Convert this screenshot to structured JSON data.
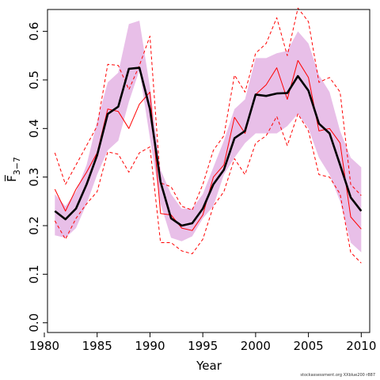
{
  "chart_data": {
    "type": "line",
    "xlabel": "Year",
    "ylabel": "F̅",
    "ylabel_sub": "3−7",
    "xlim": [
      1980.3,
      2010.8
    ],
    "ylim": [
      -0.02,
      0.645
    ],
    "x_ticks": [
      1980,
      1985,
      1990,
      1995,
      2000,
      2005,
      2010
    ],
    "y_ticks": [
      0.0,
      0.1,
      0.2,
      0.3,
      0.4,
      0.5,
      0.6
    ],
    "x_tick_labels": [
      "1980",
      "1985",
      "1990",
      "1995",
      "2000",
      "2005",
      "2010"
    ],
    "y_tick_labels": [
      "0.0",
      "0.1",
      "0.2",
      "0.3",
      "0.4",
      "0.5",
      "0.6"
    ],
    "grid": false,
    "colors": {
      "band": "#e8bfe8",
      "main": "#000000",
      "red": "#ff0000"
    },
    "x": [
      1981,
      1982,
      1983,
      1984,
      1985,
      1986,
      1987,
      1988,
      1989,
      1990,
      1991,
      1992,
      1993,
      1994,
      1995,
      1996,
      1997,
      1998,
      1999,
      2000,
      2001,
      2002,
      2003,
      2004,
      2005,
      2006,
      2007,
      2008,
      2009,
      2010
    ],
    "band_lower": [
      0.18,
      0.175,
      0.195,
      0.245,
      0.305,
      0.355,
      0.375,
      0.455,
      0.52,
      0.38,
      0.245,
      0.175,
      0.168,
      0.178,
      0.215,
      0.24,
      0.305,
      0.34,
      0.37,
      0.39,
      0.39,
      0.39,
      0.405,
      0.43,
      0.4,
      0.34,
      0.305,
      0.25,
      0.165,
      0.145
    ],
    "band_upper": [
      0.265,
      0.24,
      0.27,
      0.325,
      0.415,
      0.495,
      0.515,
      0.615,
      0.622,
      0.485,
      0.315,
      0.265,
      0.235,
      0.235,
      0.265,
      0.32,
      0.375,
      0.44,
      0.46,
      0.545,
      0.545,
      0.555,
      0.56,
      0.6,
      0.575,
      0.51,
      0.475,
      0.395,
      0.34,
      0.32
    ],
    "series": [
      {
        "style": "thick-solid",
        "color": "main",
        "values": [
          0.23,
          0.213,
          0.235,
          0.285,
          0.345,
          0.43,
          0.445,
          0.523,
          0.525,
          0.44,
          0.29,
          0.215,
          0.2,
          0.205,
          0.235,
          0.285,
          0.315,
          0.38,
          0.395,
          0.47,
          0.467,
          0.472,
          0.473,
          0.508,
          0.478,
          0.41,
          0.39,
          0.325,
          0.258,
          0.23
        ]
      },
      {
        "style": "thin-solid",
        "color": "red",
        "values": [
          0.275,
          0.23,
          0.275,
          0.31,
          0.35,
          0.44,
          0.435,
          0.4,
          0.45,
          0.475,
          0.225,
          0.222,
          0.195,
          0.19,
          0.222,
          0.3,
          0.325,
          0.423,
          0.39,
          0.47,
          0.49,
          0.525,
          0.46,
          0.54,
          0.505,
          0.395,
          0.4,
          0.37,
          0.218,
          0.193
        ]
      },
      {
        "style": "dashed",
        "color": "red",
        "values": [
          0.35,
          0.285,
          0.325,
          0.365,
          0.405,
          0.532,
          0.53,
          0.48,
          0.53,
          0.59,
          0.288,
          0.28,
          0.24,
          0.232,
          0.285,
          0.355,
          0.385,
          0.51,
          0.475,
          0.555,
          0.575,
          0.628,
          0.55,
          0.648,
          0.62,
          0.495,
          0.505,
          0.475,
          0.285,
          0.262
        ]
      },
      {
        "style": "dashed",
        "color": "red",
        "values": [
          0.21,
          0.172,
          0.215,
          0.245,
          0.27,
          0.352,
          0.347,
          0.31,
          0.35,
          0.362,
          0.165,
          0.165,
          0.148,
          0.142,
          0.172,
          0.24,
          0.27,
          0.338,
          0.305,
          0.37,
          0.385,
          0.425,
          0.365,
          0.43,
          0.395,
          0.305,
          0.3,
          0.265,
          0.145,
          0.123
        ]
      }
    ]
  },
  "footer": {
    "text": "stockassessment.org XXblue200 r887"
  }
}
